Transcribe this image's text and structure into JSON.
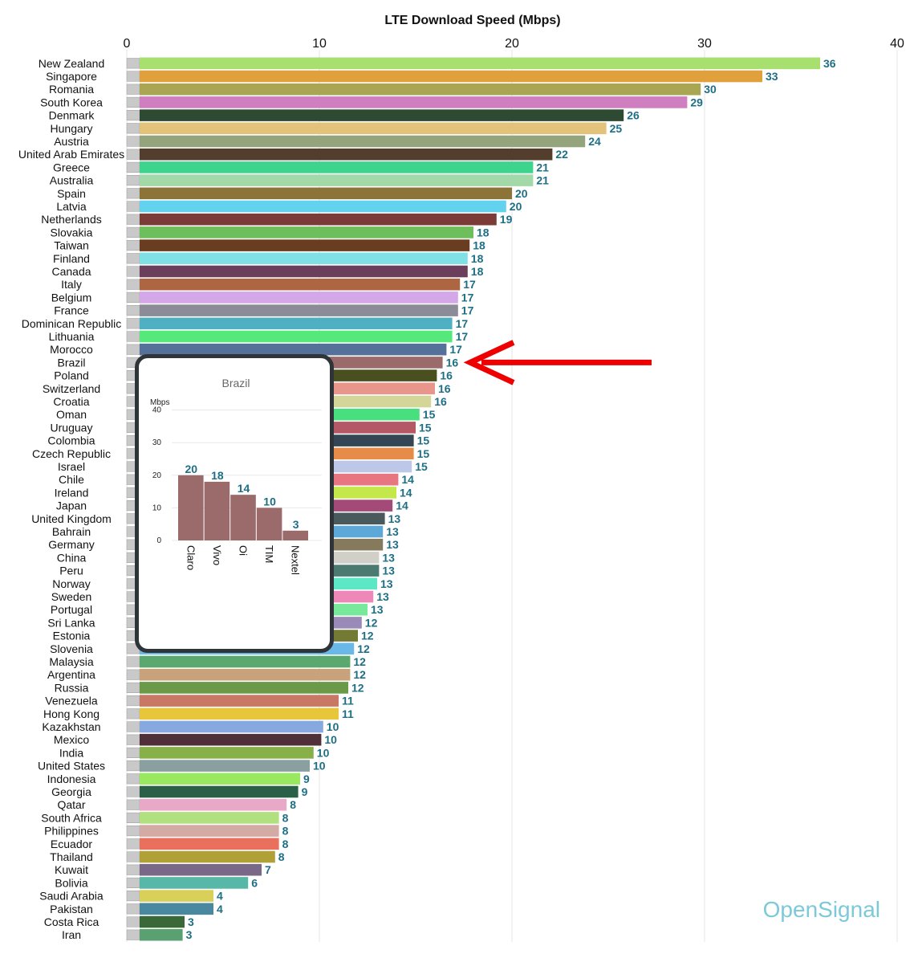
{
  "chart_data": [
    {
      "type": "bar",
      "orientation": "horizontal",
      "title": "LTE Download Speed (Mbps)",
      "xlim": [
        0,
        40
      ],
      "xticks": [
        0,
        10,
        20,
        30,
        40
      ],
      "grid": true,
      "categories": [
        "New Zealand",
        "Singapore",
        "Romania",
        "South Korea",
        "Denmark",
        "Hungary",
        "Austria",
        "United Arab Emirates",
        "Greece",
        "Australia",
        "Spain",
        "Latvia",
        "Netherlands",
        "Slovakia",
        "Taiwan",
        "Finland",
        "Canada",
        "Italy",
        "Belgium",
        "France",
        "Dominican Republic",
        "Lithuania",
        "Morocco",
        "Brazil",
        "Poland",
        "Switzerland",
        "Croatia",
        "Oman",
        "Uruguay",
        "Colombia",
        "Czech Republic",
        "Israel",
        "Chile",
        "Ireland",
        "Japan",
        "United Kingdom",
        "Bahrain",
        "Germany",
        "China",
        "Peru",
        "Norway",
        "Sweden",
        "Portugal",
        "Sri Lanka",
        "Estonia",
        "Slovenia",
        "Malaysia",
        "Argentina",
        "Russia",
        "Venezuela",
        "Hong Kong",
        "Kazakhstan",
        "Mexico",
        "India",
        "United States",
        "Indonesia",
        "Georgia",
        "Qatar",
        "South Africa",
        "Philippines",
        "Ecuador",
        "Thailand",
        "Kuwait",
        "Bolivia",
        "Saudi Arabia",
        "Pakistan",
        "Costa Rica",
        "Iran"
      ],
      "values": [
        36.0,
        33.0,
        29.8,
        29.1,
        25.8,
        24.9,
        23.8,
        22.1,
        21.1,
        21.1,
        20.0,
        19.7,
        19.2,
        18.0,
        17.8,
        17.7,
        17.7,
        17.3,
        17.2,
        17.2,
        16.9,
        16.9,
        16.6,
        16.4,
        16.1,
        16.0,
        15.8,
        15.2,
        15.0,
        14.9,
        14.9,
        14.8,
        14.1,
        14.0,
        13.8,
        13.4,
        13.3,
        13.3,
        13.1,
        13.1,
        13.0,
        12.8,
        12.5,
        12.2,
        12.0,
        11.8,
        11.6,
        11.6,
        11.5,
        11.0,
        11.0,
        10.2,
        10.1,
        9.7,
        9.5,
        9.0,
        8.9,
        8.3,
        7.9,
        7.9,
        7.9,
        7.7,
        7.0,
        6.3,
        4.5,
        4.5,
        3.0,
        2.9
      ],
      "labels": [
        "36",
        "33",
        "30",
        "29",
        "26",
        "25",
        "24",
        "22",
        "21",
        "21",
        "20",
        "20",
        "19",
        "18",
        "18",
        "18",
        "18",
        "17",
        "17",
        "17",
        "17",
        "17",
        "17",
        "16",
        "16",
        "16",
        "16",
        "15",
        "15",
        "15",
        "15",
        "15",
        "14",
        "14",
        "14",
        "13",
        "13",
        "13",
        "13",
        "13",
        "13",
        "13",
        "13",
        "12",
        "12",
        "12",
        "12",
        "12",
        "12",
        "11",
        "11",
        "10",
        "10",
        "10",
        "10",
        "9",
        "9",
        "8",
        "8",
        "8",
        "8",
        "8",
        "7",
        "6",
        "4",
        "4",
        "3",
        "3"
      ],
      "colors": [
        "#a8e06f",
        "#e0a03c",
        "#a8a653",
        "#cf7fc0",
        "#2f4a33",
        "#e3c27a",
        "#94a57e",
        "#533d2d",
        "#3fd48d",
        "#a3d9a8",
        "#8c7338",
        "#63d2ef",
        "#7b3c37",
        "#6ebf5c",
        "#6b3d20",
        "#7fe1e5",
        "#6b3f5c",
        "#ad6542",
        "#d4a8e8",
        "#8c8c98",
        "#4fb0c4",
        "#55e87a",
        "#557199",
        "#9b6b6b",
        "#4a4f1f",
        "#e8958c",
        "#d4d699",
        "#48e07e",
        "#b35864",
        "#344654",
        "#e48c48",
        "#bdc8e8",
        "#e87680",
        "#c4e84a",
        "#a34a78",
        "#4a5a5c",
        "#5ca8d8",
        "#867a5c",
        "#d0d0c8",
        "#4a7a70",
        "#5ce8c4",
        "#ee88b8",
        "#78e89a",
        "#9a8ab8",
        "#737a34",
        "#6ab8e8",
        "#5aa86e",
        "#c8a27a",
        "#6a9a48",
        "#c87864",
        "#e8c63c",
        "#88a8e0",
        "#503038",
        "#88b048",
        "#8aa0a0",
        "#98e860",
        "#2a6048",
        "#e8a8c8",
        "#b0e080",
        "#d4aaa4",
        "#e8705c",
        "#b0a038",
        "#7a6888",
        "#58b8a8",
        "#d8d058",
        "#4a88a0",
        "#3a6838",
        "#5aa070"
      ],
      "brand": "OpenSignal"
    },
    {
      "type": "bar",
      "title": "Brazil",
      "ylabel": "Mbps",
      "ylim": [
        0,
        40
      ],
      "yticks": [
        0,
        10,
        20,
        30,
        40
      ],
      "categories": [
        "Claro",
        "Vivo",
        "Oi",
        "TIM",
        "Nextel"
      ],
      "values": [
        20,
        18,
        14,
        10,
        3
      ],
      "color": "#9b6b6b"
    }
  ],
  "annotation": {
    "arrow_color": "#ee0000",
    "points_to": "Brazil"
  }
}
